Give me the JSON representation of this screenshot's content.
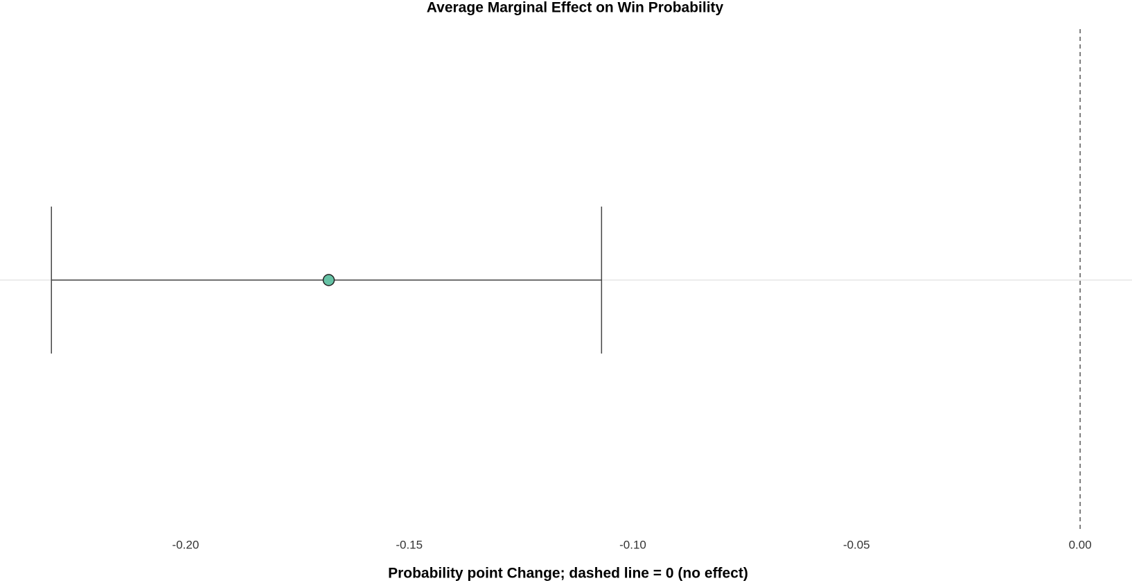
{
  "chart_data": {
    "type": "errorbar",
    "title": "Average Marginal Effect on Win Probability",
    "x_label": "Probability point Change; dashed line = 0 (no effect)",
    "categories": [
      null
    ],
    "series": [
      {
        "color": "#66c2a5",
        "values": [
          -0.168
        ],
        "lower": [
          -0.23
        ],
        "upper": [
          -0.107
        ]
      }
    ],
    "xlim": [
      -0.2415,
      0.0116
    ],
    "xticks": [
      {
        "value": -0.2,
        "label": "-0.20"
      },
      {
        "value": -0.15,
        "label": "-0.15"
      },
      {
        "value": -0.1,
        "label": "-0.10"
      },
      {
        "value": -0.05,
        "label": "-0.05"
      },
      {
        "value": 0,
        "label": "0.00"
      }
    ],
    "reference_line": 0,
    "grid": true
  }
}
